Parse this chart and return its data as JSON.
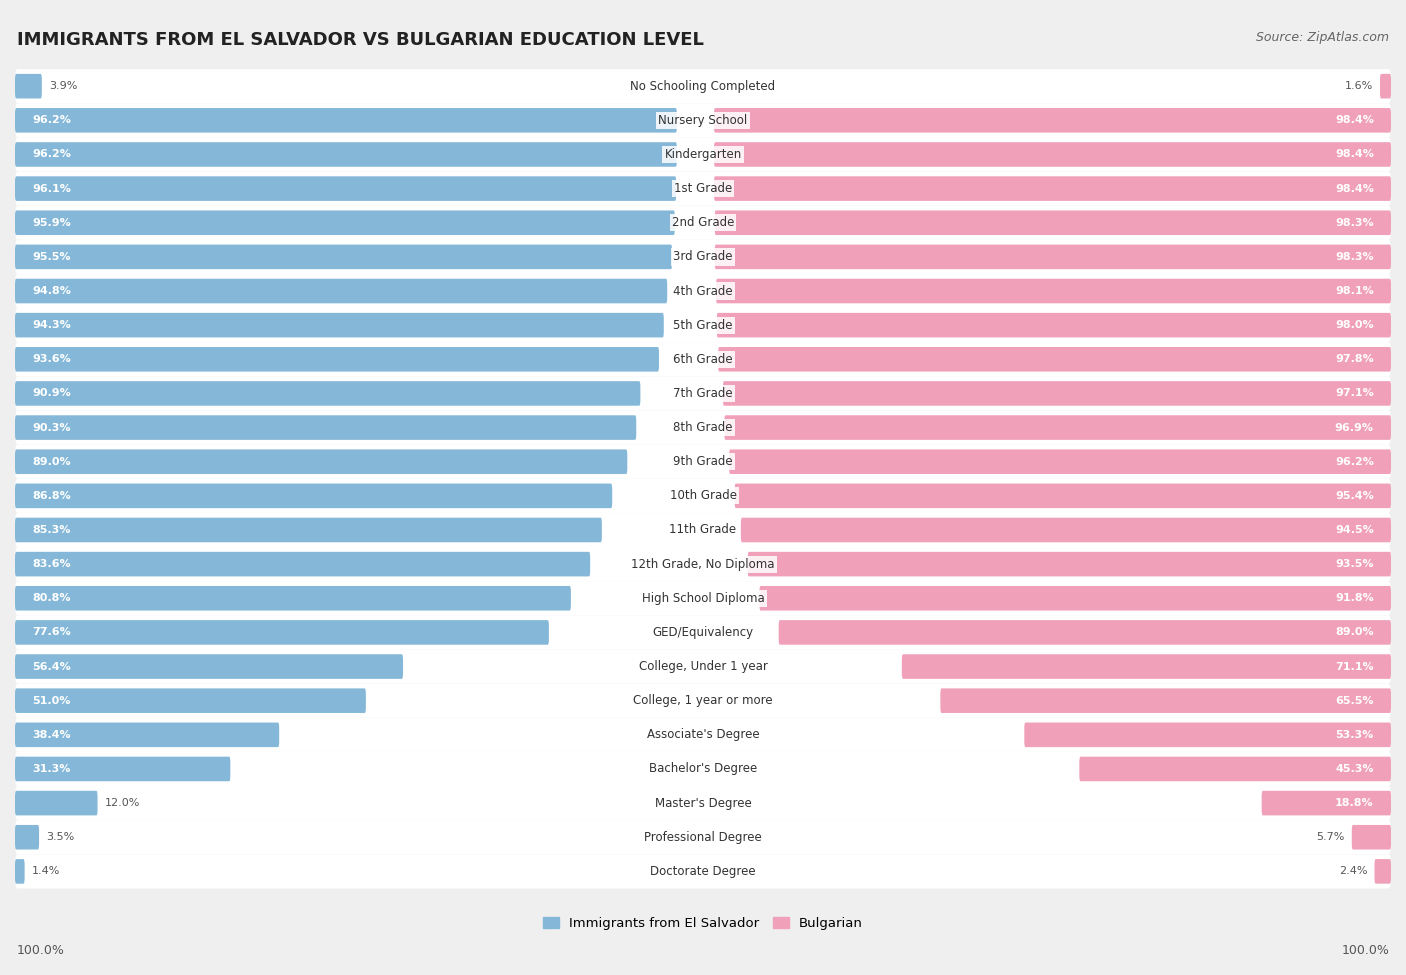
{
  "title": "IMMIGRANTS FROM EL SALVADOR VS BULGARIAN EDUCATION LEVEL",
  "source": "Source: ZipAtlas.com",
  "categories": [
    "No Schooling Completed",
    "Nursery School",
    "Kindergarten",
    "1st Grade",
    "2nd Grade",
    "3rd Grade",
    "4th Grade",
    "5th Grade",
    "6th Grade",
    "7th Grade",
    "8th Grade",
    "9th Grade",
    "10th Grade",
    "11th Grade",
    "12th Grade, No Diploma",
    "High School Diploma",
    "GED/Equivalency",
    "College, Under 1 year",
    "College, 1 year or more",
    "Associate's Degree",
    "Bachelor's Degree",
    "Master's Degree",
    "Professional Degree",
    "Doctorate Degree"
  ],
  "el_salvador": [
    3.9,
    96.2,
    96.2,
    96.1,
    95.9,
    95.5,
    94.8,
    94.3,
    93.6,
    90.9,
    90.3,
    89.0,
    86.8,
    85.3,
    83.6,
    80.8,
    77.6,
    56.4,
    51.0,
    38.4,
    31.3,
    12.0,
    3.5,
    1.4
  ],
  "bulgarian": [
    1.6,
    98.4,
    98.4,
    98.4,
    98.3,
    98.3,
    98.1,
    98.0,
    97.8,
    97.1,
    96.9,
    96.2,
    95.4,
    94.5,
    93.5,
    91.8,
    89.0,
    71.1,
    65.5,
    53.3,
    45.3,
    18.8,
    5.7,
    2.4
  ],
  "el_salvador_color": "#85b8d8",
  "bulgarian_color": "#f0a0b8",
  "background_color": "#efefef",
  "row_bg_color": "#ffffff",
  "label_inside_color": "#ffffff",
  "label_outside_color": "#555555",
  "center_label_color": "#333333"
}
